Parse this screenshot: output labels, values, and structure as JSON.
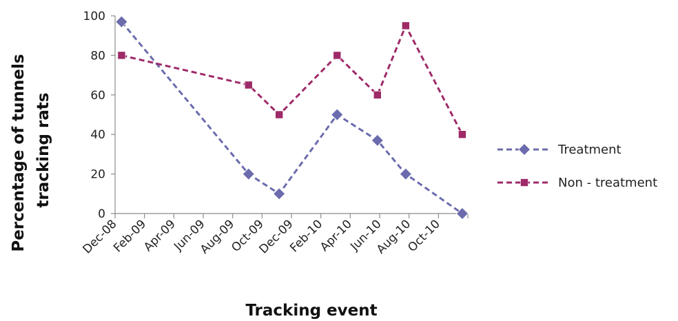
{
  "chart_data": {
    "type": "line",
    "xlabel": "Tracking event",
    "ylabel": [
      "Percentage of tunnels",
      "tracking rats"
    ],
    "ylim": [
      0,
      100
    ],
    "yticks": [
      "0",
      "20",
      "40",
      "60",
      "80",
      "100"
    ],
    "xticks": [
      "Dec-08",
      "Feb-09",
      "Apr-09",
      "Jun-09",
      "Aug-09",
      "Oct-09",
      "Dec-09",
      "Feb-10",
      "Apr-10",
      "Jun-10",
      "Aug-10",
      "Oct-10"
    ],
    "grid": false,
    "legend_position": "right",
    "series": [
      {
        "name": "Treatment",
        "color": "#6B6BAE",
        "marker": "diamond",
        "line": "dashed",
        "points": [
          {
            "x": "2008-12-15",
            "y": 97
          },
          {
            "x": "2009-09-15",
            "y": 20
          },
          {
            "x": "2009-11-20",
            "y": 10
          },
          {
            "x": "2010-03-25",
            "y": 50
          },
          {
            "x": "2010-06-20",
            "y": 37
          },
          {
            "x": "2010-08-20",
            "y": 20
          },
          {
            "x": "2010-12-20",
            "y": 0
          }
        ]
      },
      {
        "name": "Non - treatment",
        "color": "#9E2A68",
        "marker": "square",
        "line": "dashed",
        "points": [
          {
            "x": "2008-12-15",
            "y": 80
          },
          {
            "x": "2009-09-15",
            "y": 65
          },
          {
            "x": "2009-11-20",
            "y": 50
          },
          {
            "x": "2010-03-25",
            "y": 80
          },
          {
            "x": "2010-06-20",
            "y": 60
          },
          {
            "x": "2010-08-20",
            "y": 95
          },
          {
            "x": "2010-12-20",
            "y": 40
          }
        ]
      }
    ]
  }
}
